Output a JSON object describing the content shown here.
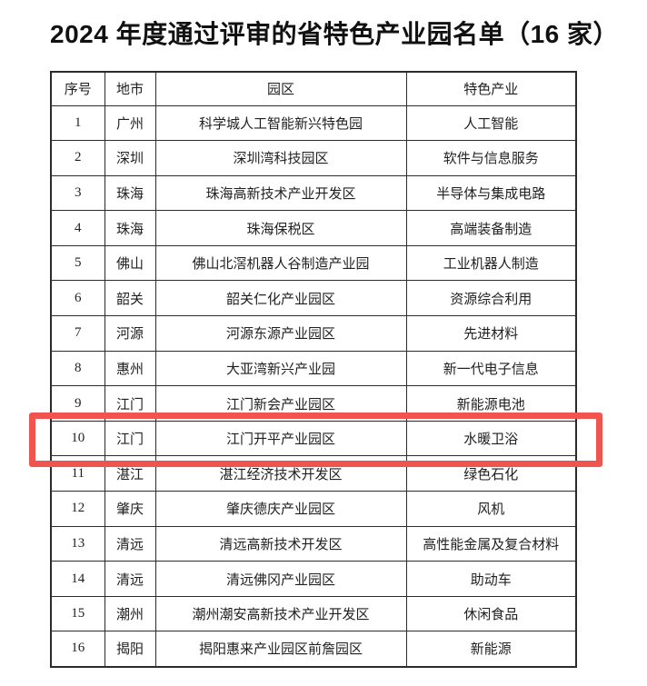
{
  "title": "2024 年度通过评审的省特色产业园名单（16 家）",
  "table": {
    "headers": [
      "序号",
      "地市",
      "园区",
      "特色产业"
    ],
    "rows": [
      {
        "no": "1",
        "city": "广州",
        "park": "科学城人工智能新兴特色园",
        "industry": "人工智能"
      },
      {
        "no": "2",
        "city": "深圳",
        "park": "深圳湾科技园区",
        "industry": "软件与信息服务"
      },
      {
        "no": "3",
        "city": "珠海",
        "park": "珠海高新技术产业开发区",
        "industry": "半导体与集成电路"
      },
      {
        "no": "4",
        "city": "珠海",
        "park": "珠海保税区",
        "industry": "高端装备制造"
      },
      {
        "no": "5",
        "city": "佛山",
        "park": "佛山北滘机器人谷制造产业园",
        "industry": "工业机器人制造"
      },
      {
        "no": "6",
        "city": "韶关",
        "park": "韶关仁化产业园区",
        "industry": "资源综合利用"
      },
      {
        "no": "7",
        "city": "河源",
        "park": "河源东源产业园区",
        "industry": "先进材料"
      },
      {
        "no": "8",
        "city": "惠州",
        "park": "大亚湾新兴产业园",
        "industry": "新一代电子信息"
      },
      {
        "no": "9",
        "city": "江门",
        "park": "江门新会产业园区",
        "industry": "新能源电池"
      },
      {
        "no": "10",
        "city": "江门",
        "park": "江门开平产业园区",
        "industry": "水暖卫浴"
      },
      {
        "no": "11",
        "city": "湛江",
        "park": "湛江经济技术开发区",
        "industry": "绿色石化"
      },
      {
        "no": "12",
        "city": "肇庆",
        "park": "肇庆德庆产业园区",
        "industry": "风机"
      },
      {
        "no": "13",
        "city": "清远",
        "park": "清远高新技术开发区",
        "industry": "高性能金属及复合材料"
      },
      {
        "no": "14",
        "city": "清远",
        "park": "清远佛冈产业园区",
        "industry": "助动车"
      },
      {
        "no": "15",
        "city": "潮州",
        "park": "潮州潮安高新技术产业开发区",
        "industry": "休闲食品"
      },
      {
        "no": "16",
        "city": "揭阳",
        "park": "揭阳惠来产业园区前詹园区",
        "industry": "新能源"
      }
    ],
    "highlighted_row_no": "10"
  },
  "colors": {
    "highlight_border": "#f0544f",
    "table_border": "#2b2b2b",
    "text": "#1f1f1f"
  }
}
